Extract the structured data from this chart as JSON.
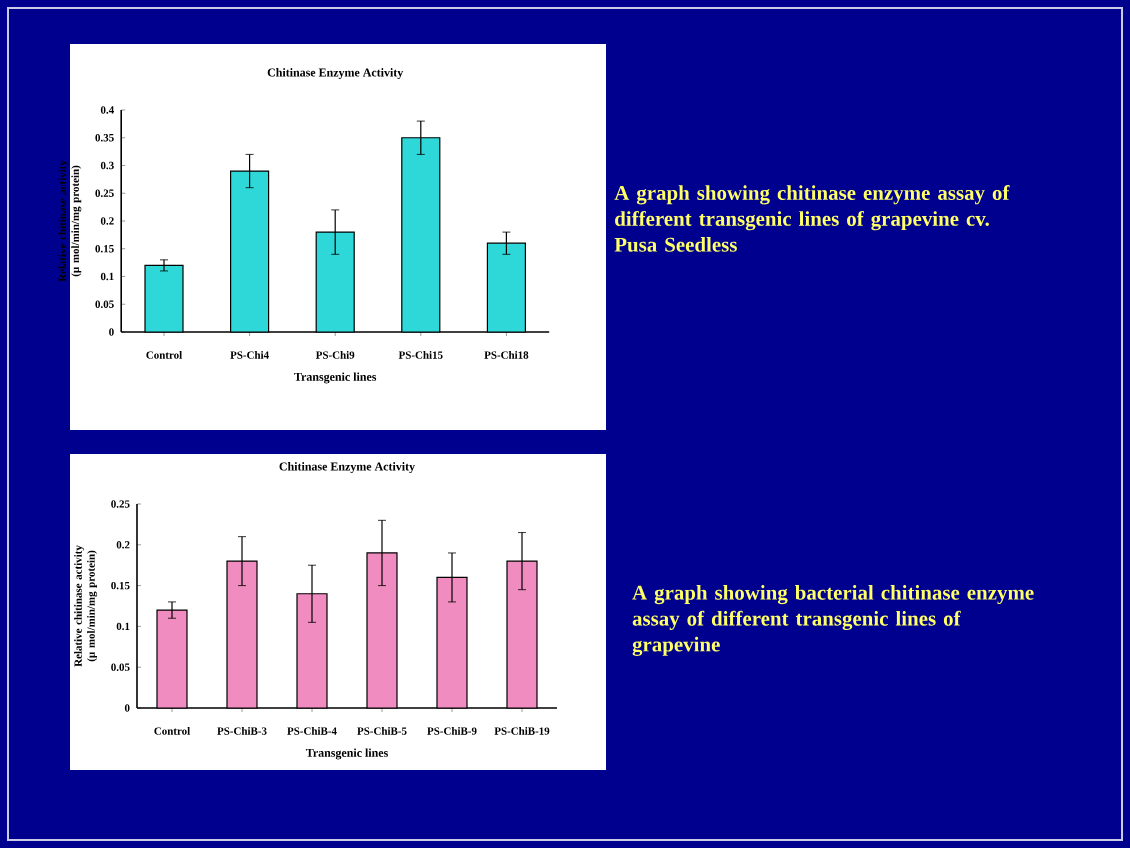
{
  "chart_data": [
    {
      "type": "bar",
      "title": "Chitinase Enzyme Activity",
      "xlabel": "Transgenic lines",
      "ylabel": "Relative chitinase activity (µ mol/min/mg protein)",
      "categories": [
        "Control",
        "PS-Chi4",
        "PS-Chi9",
        "PS-Chi15",
        "PS-Chi18"
      ],
      "values": [
        0.12,
        0.29,
        0.18,
        0.35,
        0.16
      ],
      "errors": [
        0.01,
        0.03,
        0.04,
        0.03,
        0.02
      ],
      "color": "#2ed8d8",
      "ylim": [
        0,
        0.4
      ],
      "yticks": [
        0,
        0.05,
        0.1,
        0.15,
        0.2,
        0.25,
        0.3,
        0.35,
        0.4
      ],
      "annotations": [
        "A graph showing chitinase enzyme assay of different transgenic lines of grapevine cv. Pusa Seedless"
      ]
    },
    {
      "type": "bar",
      "title": "Chitinase Enzyme Activity",
      "xlabel": "Transgenic lines",
      "ylabel": "Relative chitinase activity (µ mol/min/mg protein)",
      "categories": [
        "Control",
        "PS-ChiB-3",
        "PS-ChiB-4",
        "PS-ChiB-5",
        "PS-ChiB-9",
        "PS-ChiB-19"
      ],
      "values": [
        0.12,
        0.18,
        0.14,
        0.19,
        0.16,
        0.18
      ],
      "errors": [
        0.01,
        0.03,
        0.035,
        0.04,
        0.03,
        0.035
      ],
      "color": "#f08cc0",
      "ylim": [
        0,
        0.25
      ],
      "yticks": [
        0,
        0.05,
        0.1,
        0.15,
        0.2,
        0.25
      ],
      "annotations": [
        "A graph showing bacterial chitinase enzyme assay of different transgenic lines of grapevine"
      ]
    }
  ]
}
